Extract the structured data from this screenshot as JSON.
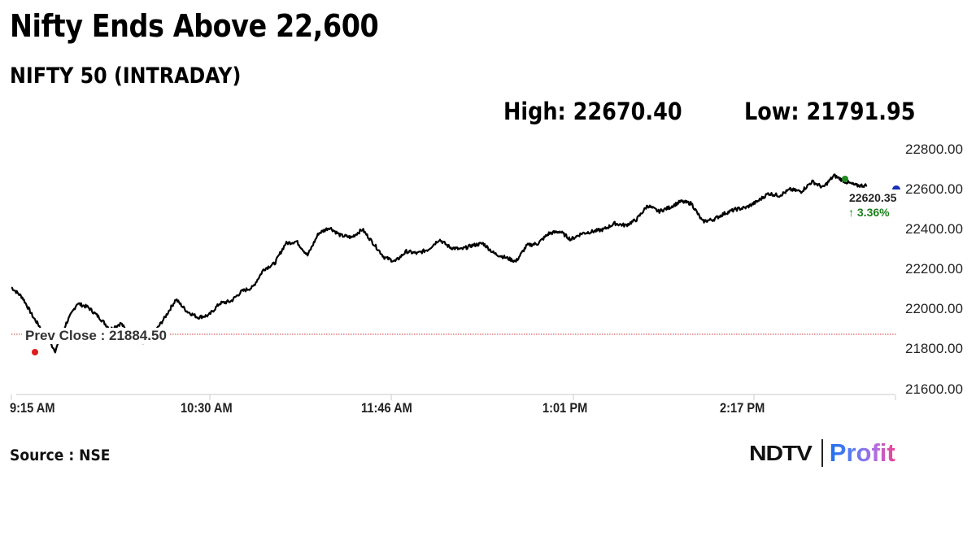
{
  "header": {
    "title": "Nifty Ends Above 22,600",
    "subtitle": "NIFTY 50 (INTRADAY)",
    "high_label": "High: 22670.40",
    "low_label": "Low: 21791.95"
  },
  "annotations": {
    "prev_close_label": "Prev Close : 21884.50",
    "last_value": "22620.35",
    "last_change": "↑ 3.36%"
  },
  "footer": {
    "source": "Source : NSE",
    "logo_left": "NDTV",
    "logo_right": "Profit"
  },
  "colors": {
    "line": "#000000",
    "prev_close": "#d03a3a",
    "high_marker": "#1f8a1f",
    "low_marker": "#e01b1b",
    "last_marker": "#1a2fb5",
    "change_positive": "#1a7f1a"
  },
  "chart_data": {
    "type": "line",
    "title": "NIFTY 50 (INTRADAY)",
    "xlabel": "",
    "ylabel": "",
    "ylim": [
      21600,
      22800
    ],
    "y_ticks": [
      "22800.00",
      "22600.00",
      "22400.00",
      "22200.00",
      "22000.00",
      "21800.00",
      "21600.00"
    ],
    "x_ticks": [
      "9:15 AM",
      "10:30 AM",
      "11:46 AM",
      "1:01 PM",
      "2:17 PM"
    ],
    "grid": false,
    "y_axis_position": "right",
    "prev_close": 21884.5,
    "high": 22670.4,
    "low": 21791.95,
    "close": 22620.35,
    "change_pct": 3.36,
    "series": [
      {
        "name": "NIFTY 50",
        "x": [
          "9:15",
          "9:17",
          "9:20",
          "9:23",
          "9:26",
          "9:30",
          "9:33",
          "9:36",
          "9:40",
          "9:45",
          "9:50",
          "9:55",
          "10:00",
          "10:05",
          "10:10",
          "10:15",
          "10:20",
          "10:25",
          "10:30",
          "10:35",
          "10:40",
          "10:45",
          "10:50",
          "10:55",
          "11:00",
          "11:05",
          "11:10",
          "11:15",
          "11:20",
          "11:25",
          "11:30",
          "11:35",
          "11:40",
          "11:46",
          "11:50",
          "11:55",
          "12:00",
          "12:05",
          "12:10",
          "12:15",
          "12:20",
          "12:25",
          "12:30",
          "12:35",
          "12:40",
          "12:45",
          "12:50",
          "12:55",
          "1:01",
          "1:05",
          "1:10",
          "1:15",
          "1:20",
          "1:25",
          "1:30",
          "1:35",
          "1:40",
          "1:45",
          "1:50",
          "1:55",
          "2:00",
          "2:05",
          "2:10",
          "2:17",
          "2:20",
          "2:25",
          "2:30",
          "2:35",
          "2:40",
          "2:45",
          "2:50",
          "2:55",
          "3:00",
          "3:05",
          "3:10",
          "3:15",
          "3:20",
          "3:25",
          "3:30"
        ],
        "values": [
          22110,
          22060,
          21960,
          21880,
          21792,
          21930,
          22030,
          22010,
          21960,
          21900,
          21930,
          21850,
          21830,
          21880,
          21960,
          22050,
          21990,
          21960,
          21970,
          22030,
          22040,
          22090,
          22110,
          22200,
          22230,
          22330,
          22340,
          22270,
          22380,
          22410,
          22370,
          22360,
          22400,
          22330,
          22260,
          22240,
          22290,
          22280,
          22300,
          22350,
          22310,
          22300,
          22320,
          22330,
          22280,
          22260,
          22240,
          22320,
          22330,
          22380,
          22390,
          22350,
          22380,
          22390,
          22400,
          22430,
          22420,
          22450,
          22520,
          22490,
          22510,
          22540,
          22530,
          22440,
          22450,
          22480,
          22500,
          22510,
          22540,
          22580,
          22570,
          22600,
          22590,
          22640,
          22610,
          22670,
          22640,
          22620,
          22620
        ]
      }
    ]
  }
}
